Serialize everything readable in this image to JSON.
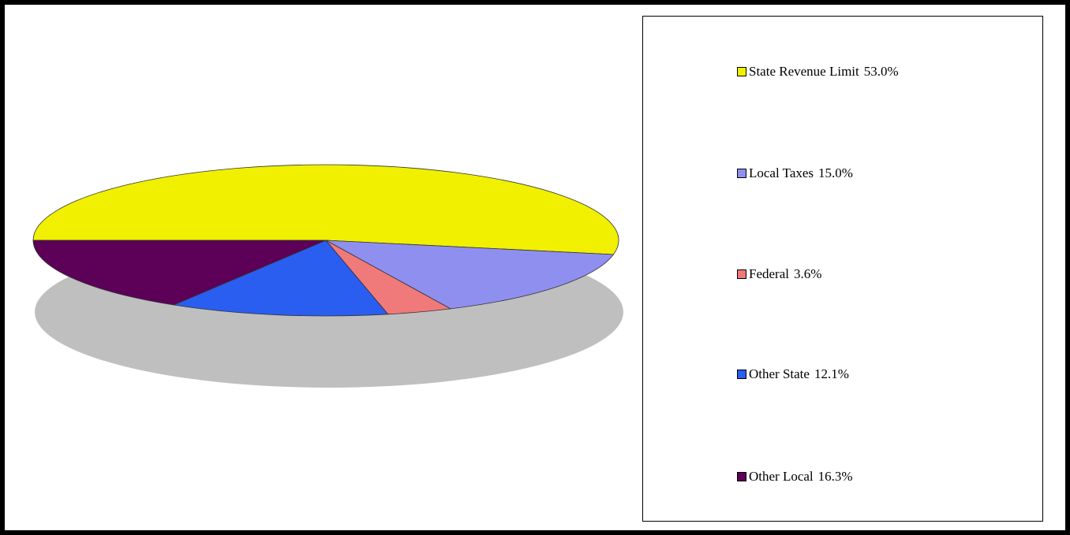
{
  "chart_data": {
    "type": "pie",
    "style": "3d",
    "title": "",
    "legend_position": "right",
    "slices": [
      {
        "label": "State Revenue Limit",
        "value": 53.0,
        "value_label": "53.0%",
        "color": "#f0f000"
      },
      {
        "label": "Local Taxes",
        "value": 15.0,
        "value_label": "15.0%",
        "color": "#8f8ff0"
      },
      {
        "label": "Federal",
        "value": 3.6,
        "value_label": "3.6%",
        "color": "#f07a7a"
      },
      {
        "label": "Other State",
        "value": 12.1,
        "value_label": "12.1%",
        "color": "#2a5ef0"
      },
      {
        "label": "Other Local",
        "value": 16.3,
        "value_label": "16.3%",
        "color": "#5c0058"
      }
    ]
  }
}
